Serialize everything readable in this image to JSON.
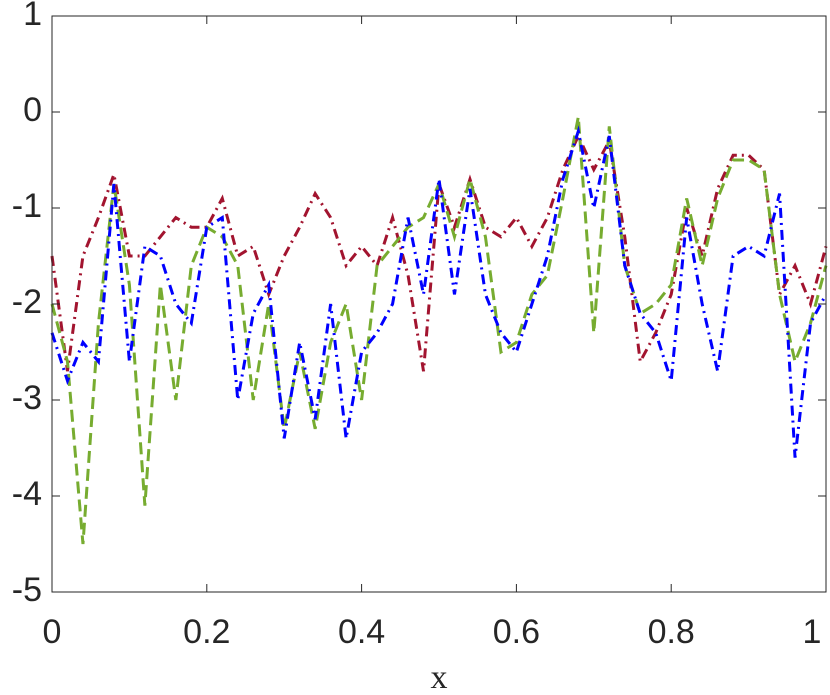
{
  "chart_data": {
    "type": "line",
    "xlabel": "x",
    "x": [
      0,
      0.02,
      0.04,
      0.06,
      0.08,
      0.1,
      0.12,
      0.14,
      0.16,
      0.18,
      0.2,
      0.22,
      0.24,
      0.26,
      0.28,
      0.3,
      0.32,
      0.34,
      0.36,
      0.38,
      0.4,
      0.42,
      0.44,
      0.46,
      0.48,
      0.5,
      0.52,
      0.54,
      0.56,
      0.58,
      0.6,
      0.62,
      0.64,
      0.66,
      0.68,
      0.7,
      0.72,
      0.74,
      0.76,
      0.78,
      0.8,
      0.82,
      0.84,
      0.86,
      0.88,
      0.9,
      0.92,
      0.94,
      0.96,
      0.98,
      1
    ],
    "series": [
      {
        "color": "#a2142f",
        "dash": "10 5 2 5",
        "values": [
          -1.5,
          -2.7,
          -1.5,
          -1.1,
          -0.65,
          -1.5,
          -1.5,
          -1.3,
          -1.1,
          -1.2,
          -1.2,
          -0.9,
          -1.5,
          -1.4,
          -1.9,
          -1.5,
          -1.2,
          -0.85,
          -1.1,
          -1.6,
          -1.4,
          -1.6,
          -1.1,
          -1.7,
          -2.7,
          -0.75,
          -1.2,
          -0.7,
          -1.2,
          -1.3,
          -1.1,
          -1.4,
          -1.1,
          -0.6,
          -0.25,
          -0.6,
          -0.3,
          -1.3,
          -2.6,
          -2.3,
          -1.9,
          -1.0,
          -1.5,
          -0.8,
          -0.45,
          -0.45,
          -0.6,
          -1.9,
          -1.6,
          -2.0,
          -1.4
        ]
      },
      {
        "color": "#77ac30",
        "dash": "12 6",
        "values": [
          -2.0,
          -2.6,
          -4.5,
          -2.2,
          -0.75,
          -1.8,
          -4.1,
          -1.8,
          -3.0,
          -1.6,
          -1.2,
          -1.3,
          -1.6,
          -3.0,
          -2.0,
          -3.3,
          -2.5,
          -3.3,
          -2.4,
          -2.0,
          -3.0,
          -1.6,
          -1.4,
          -1.2,
          -1.1,
          -0.75,
          -1.3,
          -0.7,
          -1.3,
          -2.5,
          -2.4,
          -1.9,
          -1.7,
          -0.9,
          -0.05,
          -2.3,
          -0.15,
          -1.6,
          -2.1,
          -2.0,
          -1.8,
          -0.9,
          -1.6,
          -0.9,
          -0.5,
          -0.5,
          -0.6,
          -1.9,
          -2.6,
          -2.2,
          -1.6
        ]
      },
      {
        "color": "#0000ff",
        "dash": "10 5 2 5",
        "values": [
          -2.3,
          -2.8,
          -2.4,
          -2.6,
          -0.75,
          -2.6,
          -1.4,
          -1.5,
          -2.0,
          -2.2,
          -1.2,
          -1.1,
          -3.0,
          -2.1,
          -1.8,
          -3.4,
          -2.4,
          -3.2,
          -2.0,
          -3.4,
          -2.5,
          -2.3,
          -2.0,
          -1.1,
          -1.9,
          -0.7,
          -1.9,
          -0.8,
          -1.9,
          -2.3,
          -2.5,
          -2.0,
          -1.5,
          -0.7,
          -0.2,
          -1.0,
          -0.25,
          -1.6,
          -2.1,
          -2.3,
          -2.8,
          -1.1,
          -2.0,
          -2.7,
          -1.5,
          -1.4,
          -1.5,
          -0.85,
          -3.6,
          -2.2,
          -1.9
        ]
      }
    ],
    "xlim": [
      0,
      1
    ],
    "xticks": [
      0,
      0.2,
      0.4,
      0.6,
      0.8,
      1
    ],
    "ylim": [
      -5,
      1
    ],
    "yticks": [
      1,
      0,
      -1,
      -2,
      -3,
      -4,
      -5
    ]
  }
}
